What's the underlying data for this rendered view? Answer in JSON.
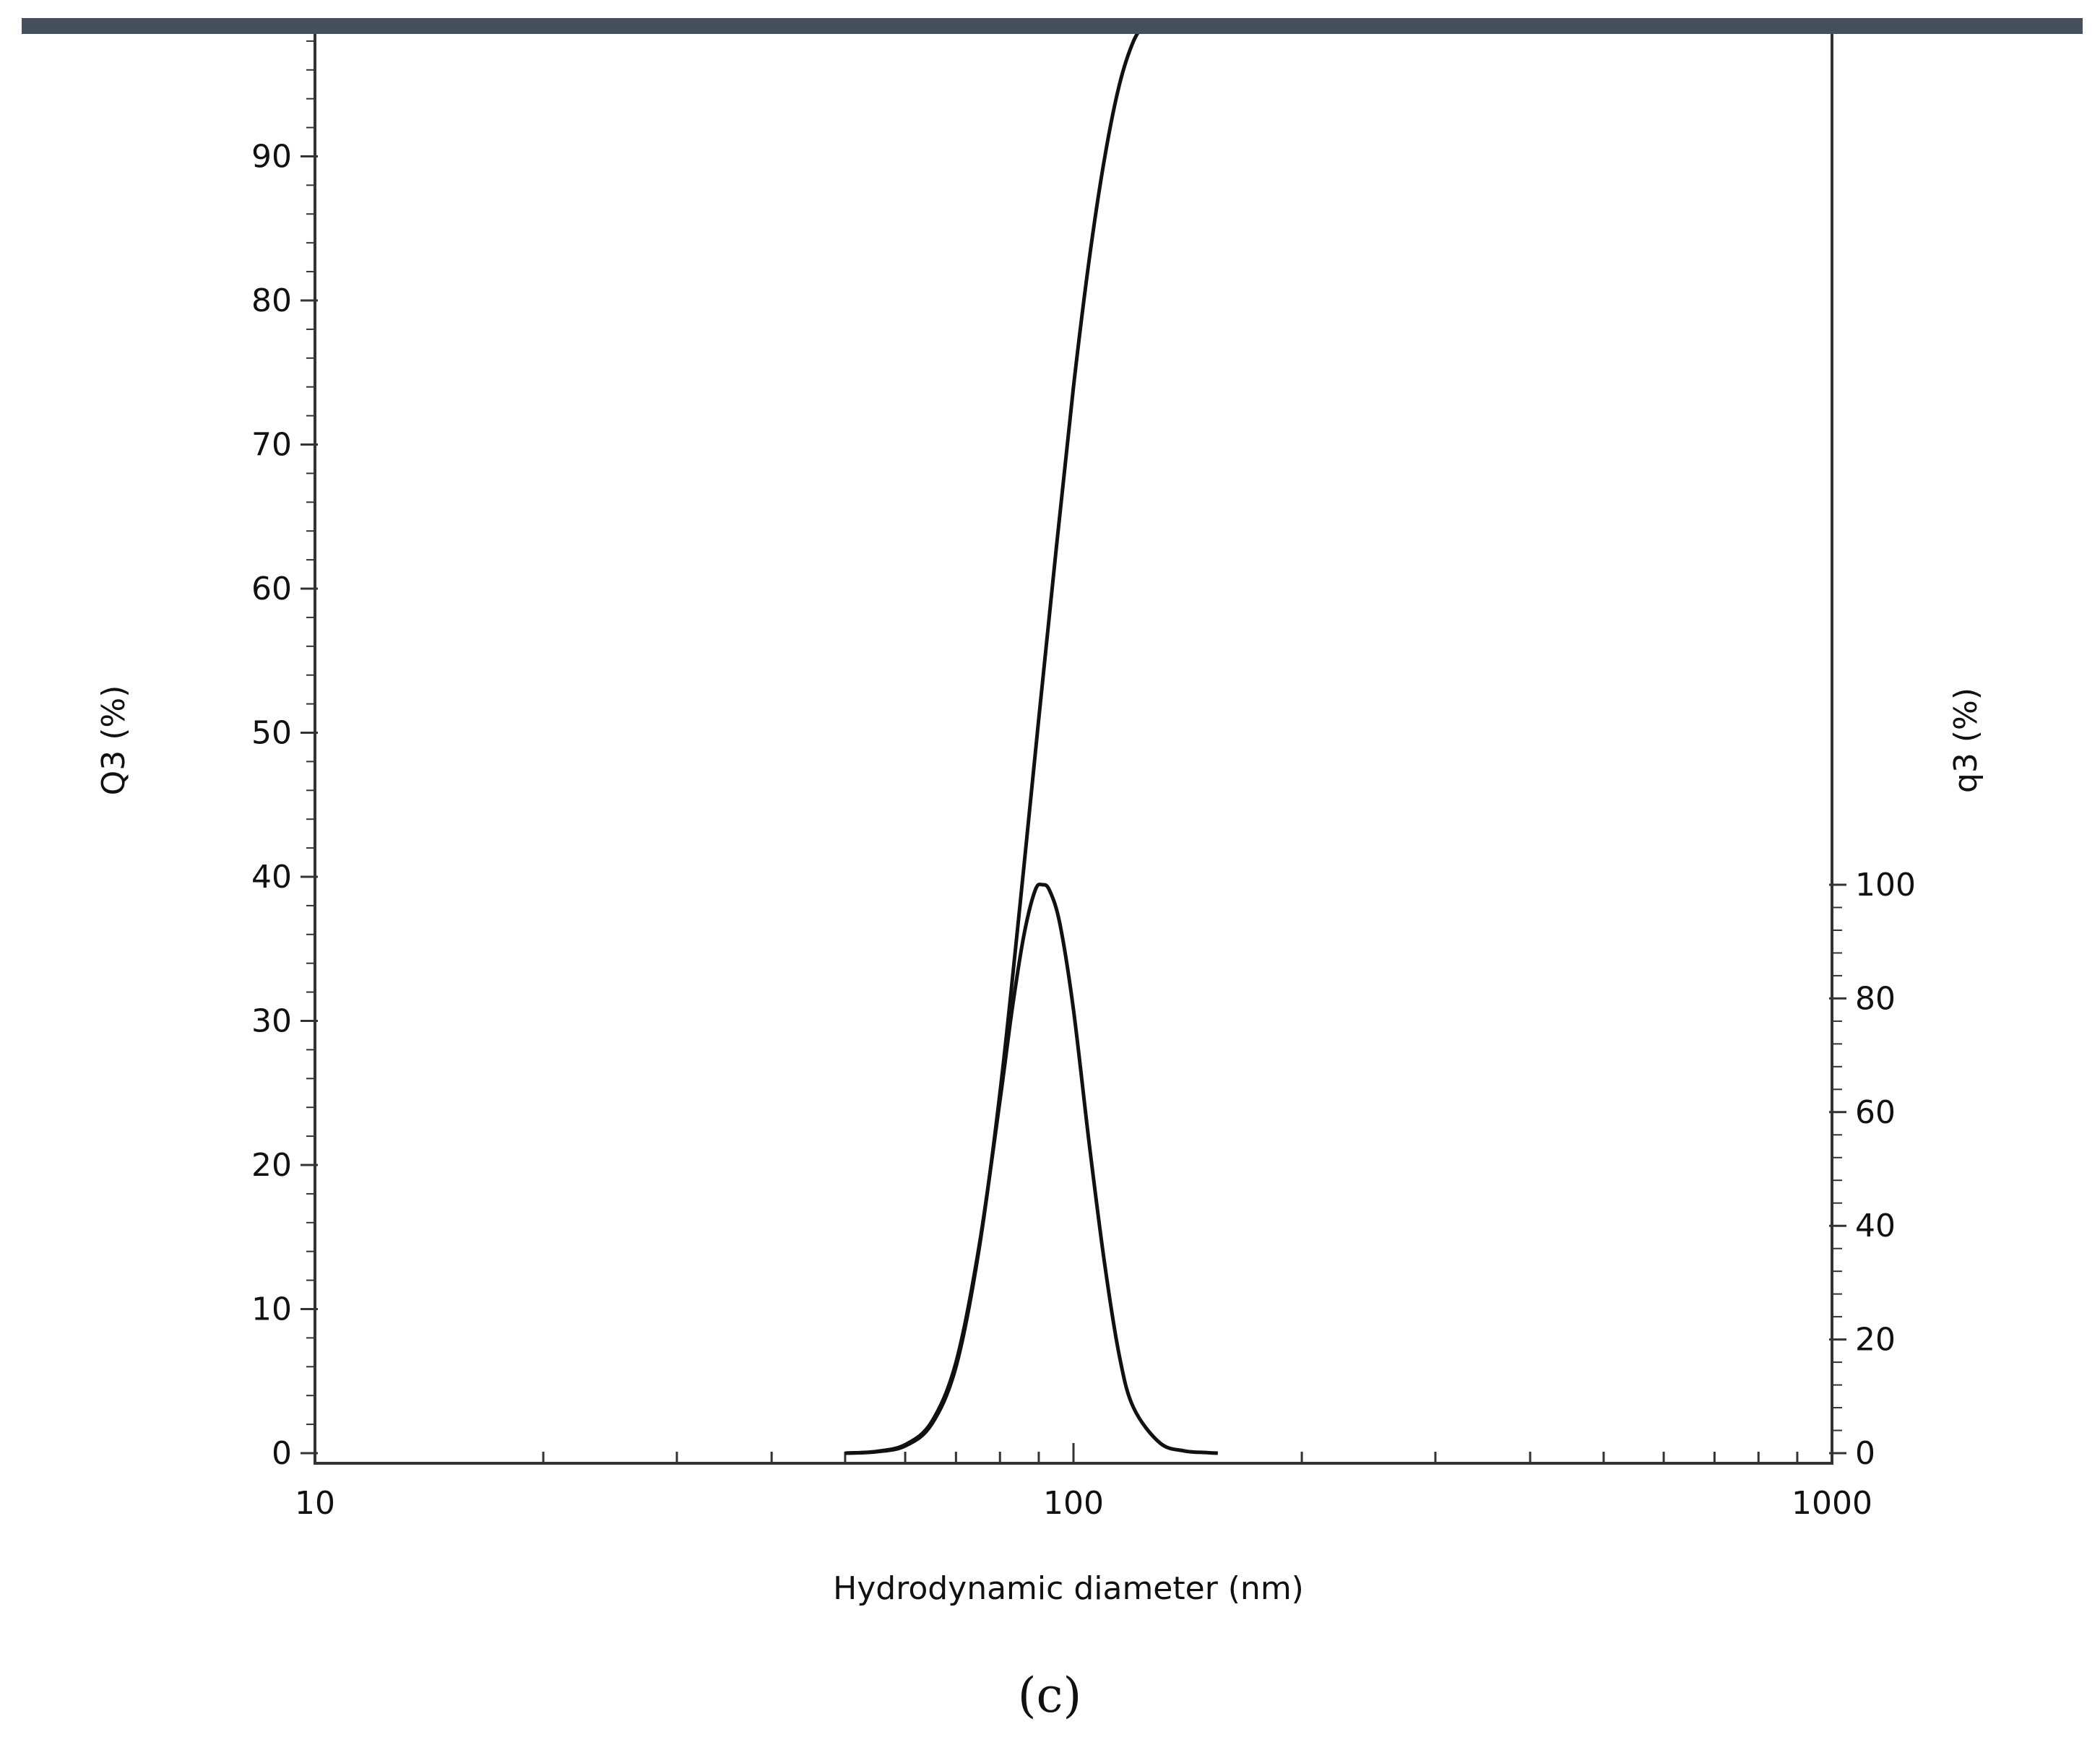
{
  "chart_data": {
    "type": "line",
    "title": "",
    "panel_label": "(c)",
    "header_bar_color": "#44505c",
    "line_color": "#111111",
    "grid": false,
    "legend": "none",
    "x_axis": {
      "label": "Hydrodynamic diameter (nm)",
      "scale": "log",
      "range": [
        10,
        1000
      ],
      "ticks": [
        10,
        100,
        1000
      ],
      "tick_labels": [
        "10",
        "100",
        "1000"
      ]
    },
    "y_left": {
      "label": "Q3 (%)",
      "range": [
        0,
        99.5
      ],
      "ticks": [
        0,
        10,
        20,
        30,
        40,
        50,
        60,
        70,
        80,
        90
      ],
      "tick_labels": [
        "0",
        "10",
        "20",
        "30",
        "40",
        "50",
        "60",
        "70",
        "80",
        "90"
      ]
    },
    "y_right": {
      "label": "q3 (%)",
      "range": [
        0,
        100
      ],
      "ticks": [
        0,
        20,
        40,
        60,
        80,
        100
      ],
      "tick_labels": [
        "0",
        "20",
        "40",
        "60",
        "80",
        "100"
      ]
    },
    "series": [
      {
        "axis": "right",
        "x": [
          50,
          55,
          60,
          65,
          70,
          75,
          80,
          83,
          86,
          89,
          91,
          93,
          96,
          100,
          105,
          110,
          115,
          120,
          130,
          140,
          150,
          155
        ],
        "y": [
          0,
          0.3,
          1.5,
          5.5,
          16,
          36,
          62,
          78,
          91,
          99,
          100,
          99,
          93,
          78,
          54,
          33,
          17,
          8,
          1.8,
          0.4,
          0.1,
          0
        ]
      },
      {
        "axis": "left",
        "x": [
          50,
          55,
          60,
          65,
          70,
          75,
          80,
          85,
          90,
          95,
          100,
          105,
          110,
          115,
          120,
          125
        ],
        "y": [
          0,
          0.1,
          0.5,
          2,
          6,
          14,
          25,
          38,
          51,
          63,
          74,
          83,
          90,
          95,
          98,
          99.5
        ]
      }
    ]
  }
}
